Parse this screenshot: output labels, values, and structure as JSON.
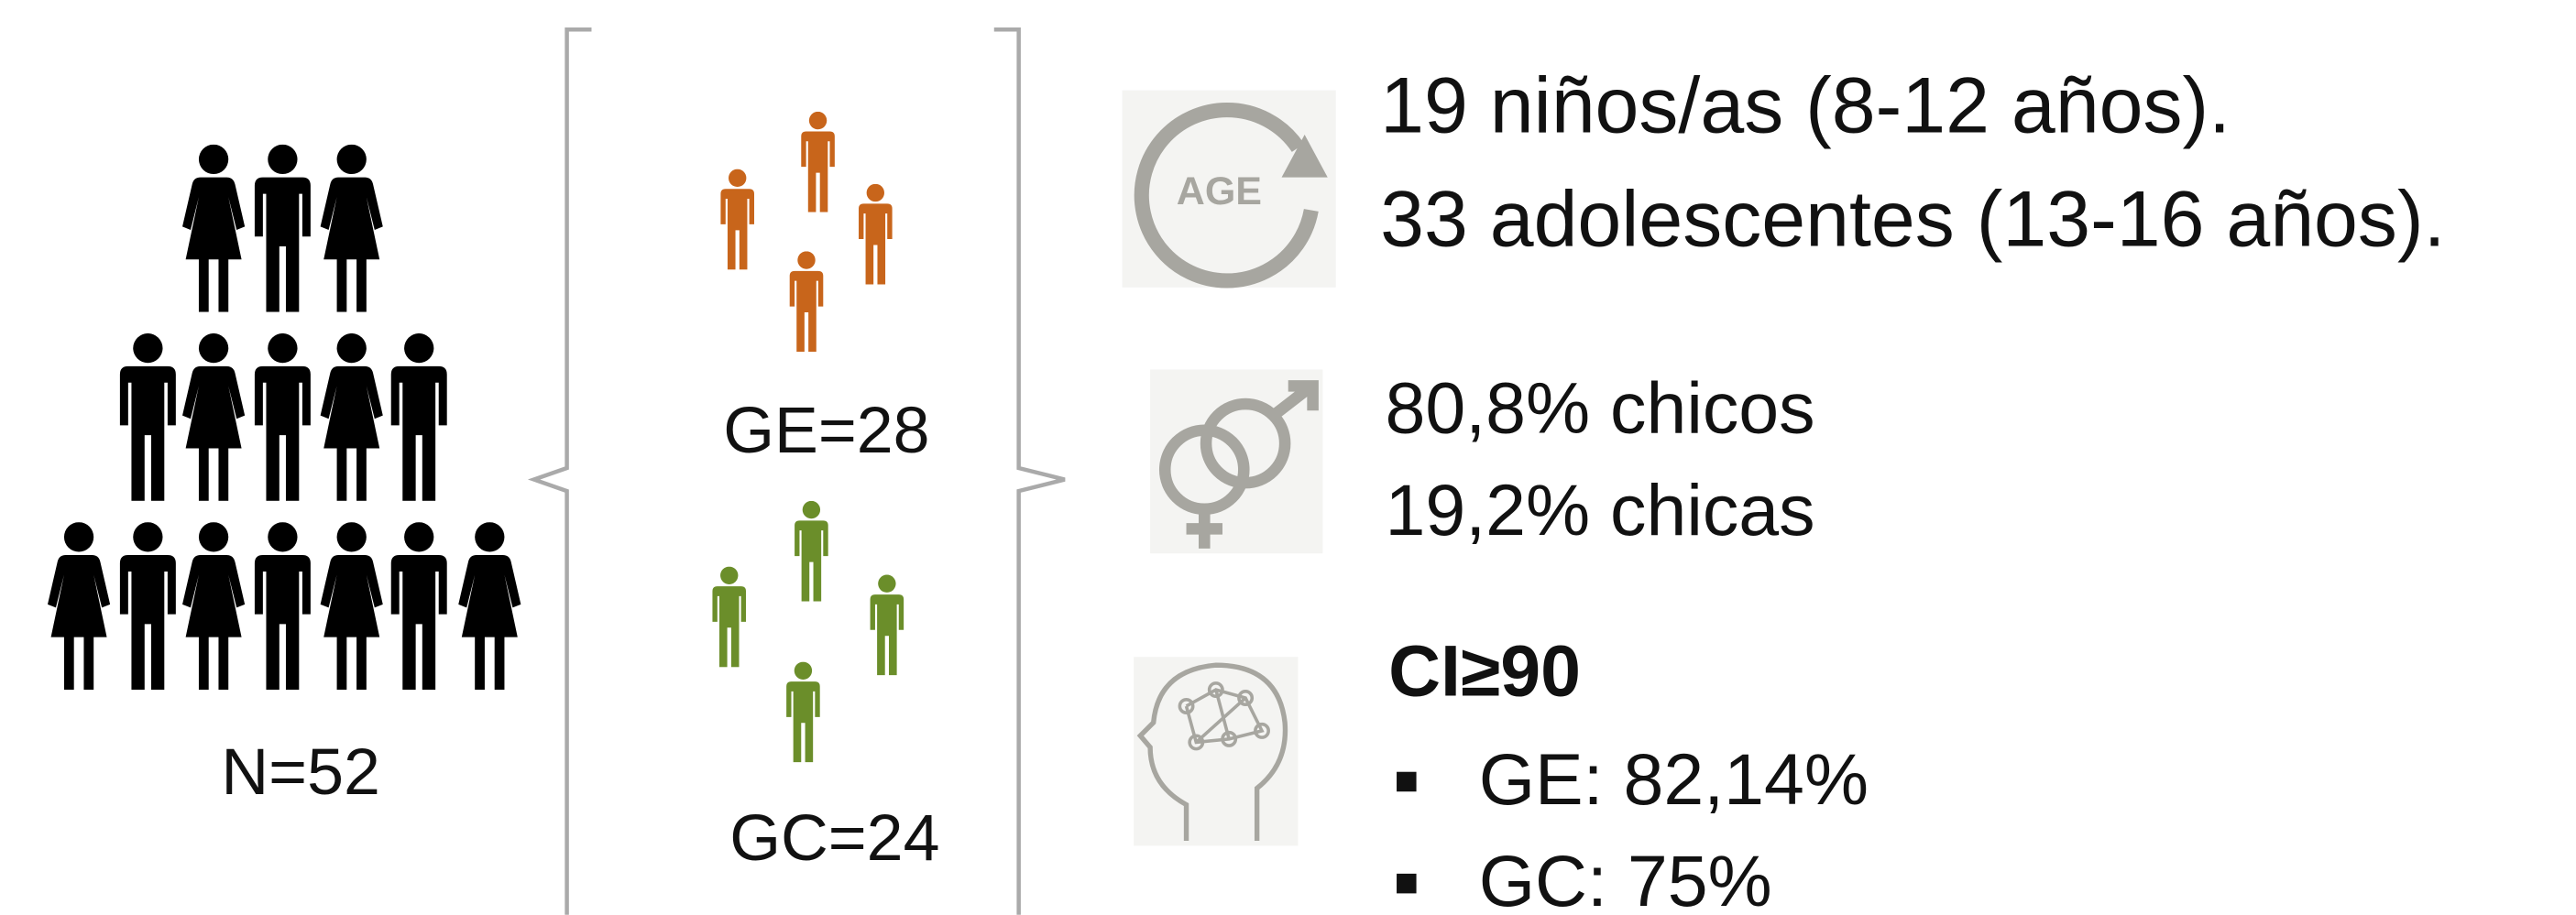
{
  "sample": {
    "total": "N=52",
    "groups": [
      {
        "label": "GE=28"
      },
      {
        "label": "GC=24"
      }
    ]
  },
  "age": {
    "icon_label": "AGE",
    "lines": [
      "19 niños/as (8-12 años).",
      "33 adolescentes (13-16 años)."
    ]
  },
  "sex": {
    "lines": [
      "80,8% chicos",
      "19,2% chicas"
    ]
  },
  "iq": {
    "title": "CI≥90",
    "items": [
      "GE: 82,14%",
      "GC: 75%"
    ]
  }
}
